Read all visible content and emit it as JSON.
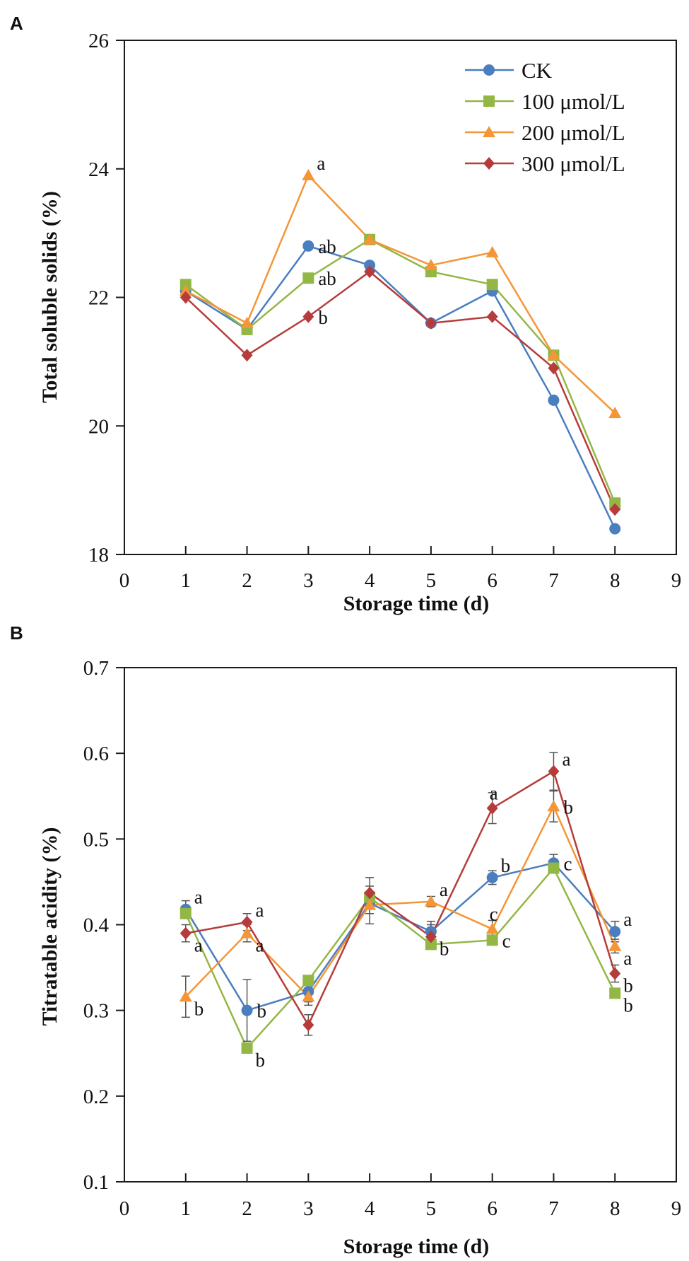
{
  "chart_data": [
    {
      "panel": "A",
      "type": "line",
      "title": "",
      "xlabel": "Storage time (d)",
      "ylabel": "Total soluble solids (%)",
      "xlim": [
        0,
        9
      ],
      "ylim": [
        18,
        26
      ],
      "x_ticks": [
        0,
        1,
        2,
        3,
        4,
        5,
        6,
        7,
        8,
        9
      ],
      "y_ticks": [
        18,
        20,
        22,
        24,
        26
      ],
      "y_tick_labels": [
        "18",
        "20",
        "22",
        "24",
        "26"
      ],
      "grid": false,
      "legend_position": "top-right",
      "x": [
        1,
        2,
        3,
        4,
        5,
        6,
        7,
        8
      ],
      "series": [
        {
          "name": "CK",
          "color": "#4a7ebf",
          "marker": "circle",
          "values": [
            22.1,
            21.5,
            22.8,
            22.5,
            21.6,
            22.1,
            20.4,
            18.4
          ]
        },
        {
          "name": "100 μmol/L",
          "color": "#93b744",
          "marker": "square",
          "values": [
            22.2,
            21.5,
            22.3,
            22.9,
            22.4,
            22.2,
            21.1,
            18.8
          ]
        },
        {
          "name": "200 μmol/L",
          "color": "#f49637",
          "marker": "triangle",
          "values": [
            22.1,
            21.6,
            23.9,
            22.9,
            22.5,
            22.7,
            21.1,
            20.2
          ]
        },
        {
          "name": "300 μmol/L",
          "color": "#b53c3a",
          "marker": "diamond",
          "values": [
            22.0,
            21.1,
            21.7,
            22.4,
            21.6,
            21.7,
            20.9,
            18.7
          ]
        }
      ],
      "annotations": [
        {
          "text": "a",
          "x": 3,
          "y": 23.9,
          "placement": "above-right"
        },
        {
          "text": "ab",
          "x": 3,
          "y": 22.8,
          "placement": "right"
        },
        {
          "text": "ab",
          "x": 3,
          "y": 22.3,
          "placement": "right"
        },
        {
          "text": "b",
          "x": 3,
          "y": 21.7,
          "placement": "right"
        }
      ]
    },
    {
      "panel": "B",
      "type": "line",
      "title": "",
      "xlabel": "Storage time (d)",
      "ylabel": "Titratable acidity (%)",
      "xlim": [
        0,
        9
      ],
      "ylim": [
        0.1,
        0.7
      ],
      "x_ticks": [
        0,
        1,
        2,
        3,
        4,
        5,
        6,
        7,
        8,
        9
      ],
      "y_ticks": [
        0.1,
        0.2,
        0.3,
        0.4,
        0.5,
        0.6,
        0.7
      ],
      "y_tick_labels": [
        "0.1",
        "0.2",
        "0.3",
        "0.4",
        "0.5",
        "0.6",
        "0.7"
      ],
      "grid": false,
      "legend_position": "none",
      "x": [
        1,
        2,
        3,
        4,
        5,
        6,
        7,
        8
      ],
      "series": [
        {
          "name": "CK",
          "color": "#4a7ebf",
          "marker": "circle",
          "values": [
            0.418,
            0.3,
            0.322,
            0.425,
            0.392,
            0.455,
            0.472,
            0.392
          ],
          "errors": [
            0.01,
            0.036,
            0.012,
            0.012,
            0.012,
            0.008,
            0.01,
            0.012
          ]
        },
        {
          "name": "100 μmol/L",
          "color": "#93b744",
          "marker": "square",
          "values": [
            0.413,
            0.256,
            0.335,
            0.432,
            0.377,
            0.382,
            0.466,
            0.32
          ]
        },
        {
          "name": "200 μmol/L",
          "color": "#f49637",
          "marker": "triangle",
          "values": [
            0.316,
            0.39,
            0.316,
            0.423,
            0.427,
            0.395,
            0.538,
            0.375
          ],
          "errors": [
            0.024,
            0.01,
            0.01,
            0.022,
            0.006,
            0.01,
            0.018,
            0.008
          ]
        },
        {
          "name": "300 μmol/L",
          "color": "#b53c3a",
          "marker": "diamond",
          "values": [
            0.39,
            0.403,
            0.283,
            0.437,
            0.386,
            0.536,
            0.579,
            0.343
          ],
          "errors": [
            0.01,
            0.01,
            0.012,
            0.018,
            0.014,
            0.018,
            0.022,
            0.01
          ]
        }
      ],
      "annotations": [
        {
          "text": "a",
          "x": 1,
          "y": 0.418,
          "placement": "above-right"
        },
        {
          "text": "a",
          "x": 1,
          "y": 0.39,
          "placement": "below-right"
        },
        {
          "text": "b",
          "x": 1,
          "y": 0.316,
          "placement": "below-right"
        },
        {
          "text": "a",
          "x": 2,
          "y": 0.403,
          "placement": "above-right"
        },
        {
          "text": "a",
          "x": 2,
          "y": 0.39,
          "placement": "below-right"
        },
        {
          "text": "b",
          "x": 2,
          "y": 0.3,
          "placement": "right"
        },
        {
          "text": "b",
          "x": 2,
          "y": 0.256,
          "placement": "below-right"
        },
        {
          "text": "a",
          "x": 5,
          "y": 0.427,
          "placement": "above-right"
        },
        {
          "text": "b",
          "x": 5,
          "y": 0.386,
          "placement": "below-right"
        },
        {
          "text": "a",
          "x": 6,
          "y": 0.536,
          "placement": "above-left"
        },
        {
          "text": "b",
          "x": 6,
          "y": 0.455,
          "placement": "above-right"
        },
        {
          "text": "c",
          "x": 6,
          "y": 0.395,
          "placement": "above-left"
        },
        {
          "text": "c",
          "x": 6,
          "y": 0.382,
          "placement": "right"
        },
        {
          "text": "a",
          "x": 7,
          "y": 0.579,
          "placement": "above-right"
        },
        {
          "text": "b",
          "x": 7,
          "y": 0.538,
          "placement": "right"
        },
        {
          "text": "c",
          "x": 7,
          "y": 0.472,
          "placement": "right"
        },
        {
          "text": "a",
          "x": 8,
          "y": 0.392,
          "placement": "above-right"
        },
        {
          "text": "a",
          "x": 8,
          "y": 0.375,
          "placement": "below-right"
        },
        {
          "text": "b",
          "x": 8,
          "y": 0.343,
          "placement": "below-right"
        },
        {
          "text": "b",
          "x": 8,
          "y": 0.32,
          "placement": "below-right"
        }
      ]
    }
  ]
}
